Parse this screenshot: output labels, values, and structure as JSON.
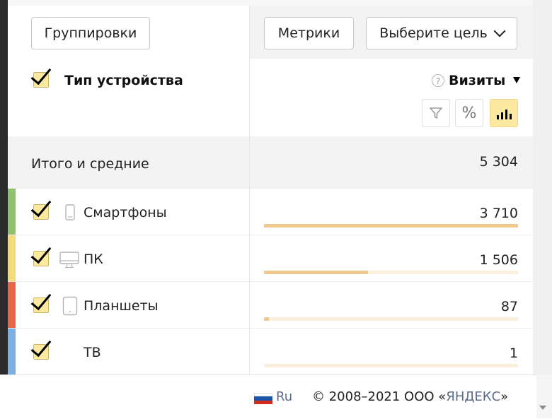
{
  "toolbar": {
    "groupings_label": "Группировки",
    "metrics_label": "Метрики",
    "goal_label": "Выберите цель"
  },
  "header": {
    "dimension_title": "Тип устройства",
    "metric_title": "Визиты",
    "help_symbol": "?",
    "percent_symbol": "%"
  },
  "totals": {
    "label": "Итого и средние",
    "value": "5 304"
  },
  "rows": [
    {
      "label": "Смартфоны",
      "value": "3 710",
      "share": 1.0,
      "marker_color": "#8dc26a",
      "icon": "smartphone-icon"
    },
    {
      "label": "ПК",
      "value": "1 506",
      "share": 0.41,
      "marker_color": "#f5dc7a",
      "icon": "desktop-icon"
    },
    {
      "label": "Планшеты",
      "value": "87",
      "share": 0.02,
      "marker_color": "#e8674a",
      "icon": "tablet-icon"
    },
    {
      "label": "ТВ",
      "value": "1",
      "share": 0.0,
      "marker_color": "#7ab0e3",
      "icon": ""
    }
  ],
  "footer": {
    "language": "Ru",
    "copyright_prefix": "© 2008–2021  ООО «",
    "brand": "ЯНДЕКС",
    "copyright_suffix": "»"
  }
}
